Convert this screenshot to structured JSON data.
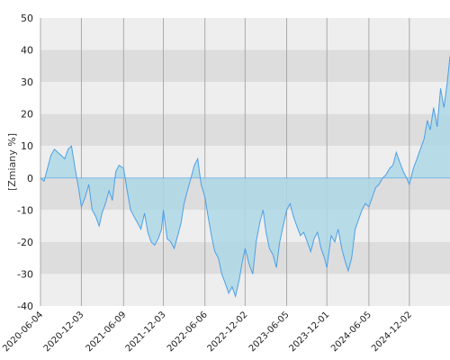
{
  "chart_data": {
    "type": "area",
    "title": "",
    "xlabel": "",
    "ylabel": "[Zmiany %]",
    "ylim": [
      -40,
      50
    ],
    "xlim": [
      "2020-06-04",
      "2025-06-01"
    ],
    "grid": true,
    "y_ticks": [
      50,
      40,
      30,
      20,
      10,
      0,
      -10,
      -20,
      -30,
      -40
    ],
    "x_ticks": [
      "2020-06-04",
      "2020-12-03",
      "2021-06-09",
      "2021-12-03",
      "2022-06-06",
      "2022-12-02",
      "2023-06-05",
      "2023-12-01",
      "2024-06-05",
      "2024-12-02"
    ],
    "colors": {
      "line": "#4d9fe6",
      "fill": "#add8e6",
      "band_light": "#eeeeee",
      "band_dark": "#dddddd",
      "grid": "#aaaaaa"
    },
    "series": [
      {
        "x": [
          "2020-06-04",
          "2020-06-20",
          "2020-07-05",
          "2020-07-20",
          "2020-08-05",
          "2020-08-20",
          "2020-09-05",
          "2020-09-20",
          "2020-10-05",
          "2020-10-20",
          "2020-11-05",
          "2020-11-20",
          "2020-12-03",
          "2020-12-20",
          "2021-01-05",
          "2021-01-20",
          "2021-02-05",
          "2021-02-20",
          "2021-03-05",
          "2021-03-20",
          "2021-04-05",
          "2021-04-20",
          "2021-05-05",
          "2021-05-20",
          "2021-06-09",
          "2021-06-25",
          "2021-07-10",
          "2021-07-25",
          "2021-08-10",
          "2021-08-25",
          "2021-09-10",
          "2021-09-25",
          "2021-10-10",
          "2021-10-25",
          "2021-11-10",
          "2021-11-25",
          "2021-12-03",
          "2021-12-20",
          "2022-01-05",
          "2022-01-20",
          "2022-02-05",
          "2022-02-20",
          "2022-03-05",
          "2022-03-20",
          "2022-04-05",
          "2022-04-20",
          "2022-05-05",
          "2022-05-20",
          "2022-06-06",
          "2022-06-20",
          "2022-07-05",
          "2022-07-20",
          "2022-08-05",
          "2022-08-20",
          "2022-09-05",
          "2022-09-20",
          "2022-10-05",
          "2022-10-20",
          "2022-11-05",
          "2022-11-20",
          "2022-12-02",
          "2022-12-20",
          "2023-01-05",
          "2023-01-20",
          "2023-02-05",
          "2023-02-20",
          "2023-03-05",
          "2023-03-20",
          "2023-04-05",
          "2023-04-20",
          "2023-05-05",
          "2023-05-20",
          "2023-06-05",
          "2023-06-20",
          "2023-07-05",
          "2023-07-20",
          "2023-08-05",
          "2023-08-20",
          "2023-09-05",
          "2023-09-20",
          "2023-10-05",
          "2023-10-20",
          "2023-11-05",
          "2023-11-20",
          "2023-12-01",
          "2023-12-20",
          "2024-01-05",
          "2024-01-20",
          "2024-02-05",
          "2024-02-20",
          "2024-03-05",
          "2024-03-20",
          "2024-04-05",
          "2024-04-20",
          "2024-05-05",
          "2024-05-20",
          "2024-06-05",
          "2024-06-20",
          "2024-07-05",
          "2024-07-20",
          "2024-08-05",
          "2024-08-20",
          "2024-09-05",
          "2024-09-20",
          "2024-10-05",
          "2024-10-20",
          "2024-11-05",
          "2024-11-20",
          "2024-12-02",
          "2024-12-20",
          "2025-01-05",
          "2025-01-20",
          "2025-02-05",
          "2025-02-20",
          "2025-03-05",
          "2025-03-20",
          "2025-04-05",
          "2025-04-20",
          "2025-05-05",
          "2025-05-20",
          "2025-06-01"
        ],
        "values": [
          0,
          -1,
          3,
          7,
          9,
          8,
          7,
          6,
          9,
          10,
          3,
          -3,
          -9,
          -6,
          -2,
          -10,
          -12,
          -15,
          -11,
          -8,
          -4,
          -7,
          2,
          4,
          3,
          -4,
          -10,
          -12,
          -14,
          -16,
          -11,
          -17,
          -20,
          -21,
          -19,
          -16,
          -10,
          -19,
          -20,
          -22,
          -18,
          -14,
          -8,
          -4,
          0,
          4,
          6,
          -2,
          -6,
          -12,
          -18,
          -23,
          -25,
          -30,
          -33,
          -36,
          -34,
          -37,
          -32,
          -26,
          -22,
          -27,
          -30,
          -20,
          -14,
          -10,
          -17,
          -22,
          -24,
          -28,
          -20,
          -15,
          -10,
          -8,
          -12,
          -15,
          -18,
          -17,
          -20,
          -23,
          -19,
          -17,
          -22,
          -25,
          -28,
          -18,
          -20,
          -16,
          -22,
          -26,
          -29,
          -25,
          -16,
          -13,
          -10,
          -8,
          -9,
          -6,
          -3,
          -2,
          0,
          1,
          3,
          4,
          8,
          5,
          2,
          0,
          -2,
          3,
          6,
          9,
          12,
          18,
          15,
          22,
          16,
          28,
          22,
          30,
          38
        ]
      }
    ]
  }
}
